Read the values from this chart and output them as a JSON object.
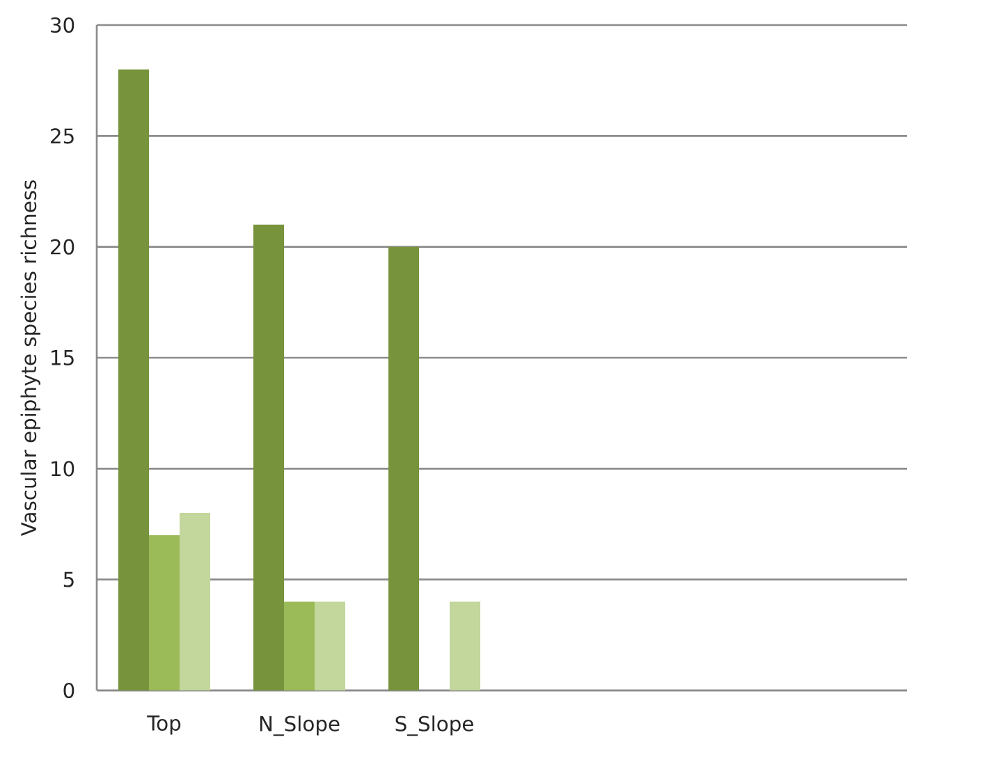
{
  "chart_data": {
    "type": "bar",
    "ylabel": "Vascular epiphyte species richness",
    "categories": [
      "Top",
      "N_Slope",
      "S_Slope",
      null,
      null,
      null
    ],
    "series": [
      {
        "color": "#77933c",
        "values": [
          28,
          21,
          20,
          null,
          null,
          null
        ]
      },
      {
        "color": "#9bbb59",
        "values": [
          7,
          4,
          null,
          null,
          null,
          null
        ]
      },
      {
        "color": "#c3d69b",
        "values": [
          8,
          4,
          4,
          null,
          null,
          null
        ]
      }
    ],
    "ylim": [
      0,
      30
    ],
    "yticks": [
      0,
      5,
      10,
      15,
      20,
      25,
      30
    ],
    "grid": "y"
  }
}
